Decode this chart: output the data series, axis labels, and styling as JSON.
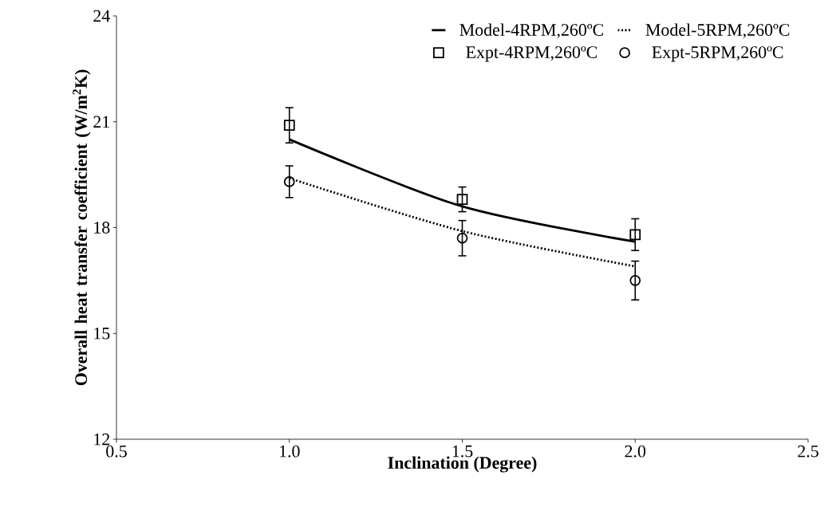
{
  "chart_data": {
    "type": "line",
    "xlabel": "Inclination (Degree)",
    "ylabel": "Overall heat transfer coefficient (W/m$^{2}$K)",
    "xlim": [
      0.5,
      2.5
    ],
    "ylim": [
      12,
      24
    ],
    "xticks": [
      0.5,
      {
        "value": 1,
        "label": "1.0"
      },
      1.5,
      {
        "value": 2,
        "label": "2.0"
      },
      2.5
    ],
    "yticks": [
      12,
      15,
      18,
      21,
      24
    ],
    "legend": "top right",
    "grid": false,
    "series": [
      {
        "name": "Model-4RPM,260ºC",
        "color": "#000000",
        "line_style": "solid",
        "marker": "none",
        "x": [
          1.0,
          1.5,
          2.0
        ],
        "values": [
          20.5,
          18.6,
          17.6
        ]
      },
      {
        "name": "Model-5RPM,260ºC",
        "color": "#000000",
        "line_style": "dotted",
        "marker": "none",
        "x": [
          1.0,
          1.5,
          2.0
        ],
        "values": [
          19.4,
          17.9,
          16.9
        ]
      },
      {
        "name": "Expt-4RPM,260ºC",
        "type": "scatter",
        "color": "#000000",
        "marker": "square",
        "x": [
          1.0,
          1.5,
          2.0
        ],
        "values": [
          20.9,
          18.8,
          17.8
        ],
        "errors": [
          0.5,
          0.35,
          0.45
        ]
      },
      {
        "name": "Expt-5RPM,260ºC",
        "type": "scatter",
        "color": "#000000",
        "marker": "circle",
        "x": [
          1.0,
          1.5,
          2.0
        ],
        "values": [
          19.3,
          17.7,
          16.5
        ],
        "errors": [
          0.45,
          0.5,
          0.55
        ]
      }
    ]
  }
}
